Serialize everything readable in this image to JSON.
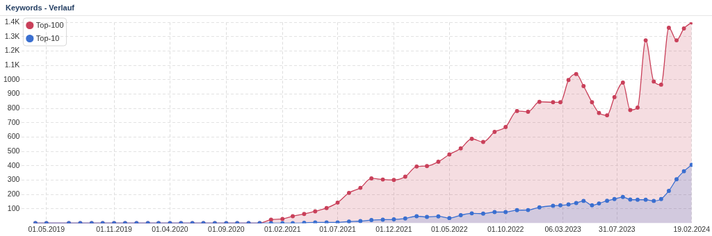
{
  "chart_data": {
    "type": "area",
    "title": "Keywords - Verlauf",
    "x": [
      "2019-04-01",
      "2019-05-01",
      "2019-07-01",
      "2019-08-01",
      "2019-09-01",
      "2019-10-01",
      "2019-11-01",
      "2019-12-01",
      "2020-01-01",
      "2020-02-01",
      "2020-03-01",
      "2020-04-01",
      "2020-05-01",
      "2020-06-01",
      "2020-07-01",
      "2020-08-01",
      "2020-09-01",
      "2020-10-01",
      "2020-11-01",
      "2020-12-01",
      "2021-01-01",
      "2021-02-01",
      "2021-03-01",
      "2021-04-01",
      "2021-05-01",
      "2021-06-01",
      "2021-07-01",
      "2021-08-01",
      "2021-09-01",
      "2021-10-01",
      "2021-11-01",
      "2021-12-01",
      "2022-01-01",
      "2022-02-01",
      "2022-03-01",
      "2022-04-01",
      "2022-05-01",
      "2022-06-01",
      "2022-07-01",
      "2022-08-01",
      "2022-09-01",
      "2022-10-01",
      "2022-11-01",
      "2022-12-01",
      "2023-01-01",
      "2023-02-07",
      "2023-02-27",
      "2023-03-21",
      "2023-04-11",
      "2023-05-01",
      "2023-05-24",
      "2023-06-12",
      "2023-07-04",
      "2023-07-24",
      "2023-08-16",
      "2023-09-05",
      "2023-09-25",
      "2023-10-17",
      "2023-11-08",
      "2023-11-28",
      "2023-12-19",
      "2024-01-09",
      "2024-01-29",
      "2024-02-19"
    ],
    "series": [
      {
        "name": "Top-100",
        "color": "#c9405a",
        "values": [
          0,
          0,
          0,
          0,
          0,
          0,
          0,
          0,
          0,
          0,
          0,
          0,
          0,
          0,
          0,
          0,
          0,
          0,
          0,
          0,
          24,
          29,
          48,
          64,
          82,
          105,
          143,
          211,
          246,
          312,
          304,
          301,
          324,
          395,
          398,
          428,
          479,
          521,
          588,
          566,
          636,
          670,
          782,
          777,
          846,
          843,
          843,
          998,
          1040,
          956,
          843,
          768,
          752,
          879,
          980,
          789,
          806,
          1275,
          988,
          966,
          1363,
          1275,
          1358,
          1400
        ]
      },
      {
        "name": "Top-10",
        "color": "#3a6fd0",
        "values": [
          0,
          0,
          0,
          0,
          0,
          0,
          0,
          0,
          0,
          0,
          0,
          0,
          0,
          0,
          0,
          0,
          0,
          0,
          0,
          0,
          0,
          0,
          0,
          2,
          5,
          5,
          5,
          11,
          14,
          21,
          24,
          26,
          32,
          48,
          43,
          47,
          35,
          55,
          68,
          66,
          77,
          77,
          90,
          91,
          110,
          121,
          124,
          130,
          140,
          155,
          124,
          137,
          156,
          168,
          182,
          164,
          163,
          163,
          155,
          168,
          225,
          306,
          362,
          406
        ]
      }
    ],
    "xlim": [
      "2019-02-23",
      "2024-02-21"
    ],
    "xticks": [
      {
        "value": "2019-05-01",
        "label": "01.05.2019"
      },
      {
        "value": "2019-11-01",
        "label": "01.11.2019"
      },
      {
        "value": "2020-04-01",
        "label": "01.04.2020"
      },
      {
        "value": "2020-09-01",
        "label": "01.09.2020"
      },
      {
        "value": "2021-02-01",
        "label": "01.02.2021"
      },
      {
        "value": "2021-07-01",
        "label": "01.07.2021"
      },
      {
        "value": "2021-12-01",
        "label": "01.12.2021"
      },
      {
        "value": "2022-05-01",
        "label": "01.05.2022"
      },
      {
        "value": "2022-10-01",
        "label": "01.10.2022"
      },
      {
        "value": "2023-03-06",
        "label": "06.03.2023"
      },
      {
        "value": "2023-07-31",
        "label": "31.07.2023"
      },
      {
        "value": "2024-02-19",
        "label": "19.02.2024"
      }
    ],
    "ylim": [
      0,
      1400
    ],
    "yticks": [
      100,
      200,
      300,
      400,
      500,
      600,
      700,
      800,
      900,
      1000,
      {
        "value": 1100,
        "label": "1.1K"
      },
      {
        "value": 1200,
        "label": "1.2K"
      },
      {
        "value": 1300,
        "label": "1.3K"
      },
      {
        "value": 1400,
        "label": "1.4K"
      }
    ],
    "grid": true,
    "legend": "top left",
    "marker": "circle",
    "line_style": "solid"
  }
}
